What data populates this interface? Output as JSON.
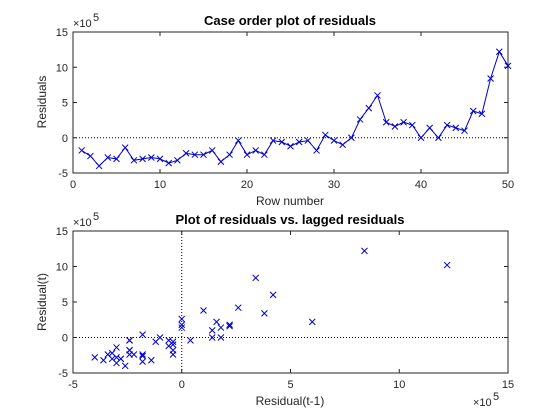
{
  "chart_data": [
    {
      "type": "line",
      "title": "Case order plot of residuals",
      "xlabel": "Row number",
      "ylabel": "Residuals",
      "xlim": [
        0,
        50
      ],
      "ylim": [
        -5,
        15
      ],
      "xticks": [
        "0",
        "10",
        "20",
        "30",
        "40",
        "50"
      ],
      "yticks": [
        "-5",
        "0",
        "5",
        "10",
        "15"
      ],
      "y_exponent": "×10^5",
      "marker": "x",
      "x": [
        1,
        2,
        3,
        4,
        5,
        6,
        7,
        8,
        9,
        10,
        11,
        12,
        13,
        14,
        15,
        16,
        17,
        18,
        19,
        20,
        21,
        22,
        23,
        24,
        25,
        26,
        27,
        28,
        29,
        30,
        31,
        32,
        33,
        34,
        35,
        36,
        37,
        38,
        39,
        40,
        41,
        42,
        43,
        44,
        45,
        46,
        47,
        48,
        49,
        50
      ],
      "y": [
        -1.8,
        -2.6,
        -4.0,
        -2.8,
        -3.0,
        -1.4,
        -3.2,
        -3.0,
        -2.8,
        -3.0,
        -3.6,
        -3.2,
        -2.2,
        -2.4,
        -2.4,
        -1.8,
        -3.4,
        -2.4,
        -0.4,
        -2.4,
        -1.8,
        -2.4,
        -0.4,
        -0.6,
        -1.2,
        -0.6,
        -0.4,
        -1.8,
        0.4,
        -0.4,
        -1.0,
        0.0,
        2.6,
        4.2,
        6.0,
        2.2,
        1.6,
        2.2,
        1.8,
        0.0,
        1.4,
        0.0,
        1.8,
        1.4,
        1.0,
        3.8,
        3.4,
        8.4,
        12.2,
        10.2
      ]
    },
    {
      "type": "scatter",
      "title": "Plot of residuals vs. lagged residuals",
      "xlabel": "Residual(t-1)",
      "ylabel": "Residual(t)",
      "xlim": [
        -5,
        15
      ],
      "ylim": [
        -5,
        15
      ],
      "xticks": [
        "-5",
        "0",
        "5",
        "10",
        "15"
      ],
      "yticks": [
        "-5",
        "0",
        "5",
        "10",
        "15"
      ],
      "x_exponent": "×10^5",
      "y_exponent": "×10^5",
      "marker": "x",
      "x": [
        -1.8,
        -2.6,
        -4.0,
        -2.8,
        -3.0,
        -1.4,
        -3.2,
        -3.0,
        -2.8,
        -3.0,
        -3.6,
        -3.2,
        -2.2,
        -2.4,
        -2.4,
        -1.8,
        -3.4,
        -2.4,
        -0.4,
        -2.4,
        -1.8,
        -2.4,
        -0.4,
        -0.6,
        -1.2,
        -0.6,
        -0.4,
        -1.8,
        0.4,
        -0.4,
        -1.0,
        0.0,
        2.6,
        4.2,
        6.0,
        2.2,
        1.6,
        2.2,
        1.8,
        0.0,
        1.4,
        0.0,
        1.8,
        1.4,
        1.0,
        3.8,
        3.4,
        8.4,
        12.2
      ],
      "y": [
        -2.6,
        -4.0,
        -2.8,
        -3.0,
        -1.4,
        -3.2,
        -3.0,
        -2.8,
        -3.0,
        -3.6,
        -3.2,
        -2.2,
        -2.4,
        -2.4,
        -1.8,
        -3.4,
        -2.4,
        -0.4,
        -2.4,
        -1.8,
        -2.4,
        -0.4,
        -0.6,
        -1.2,
        -0.6,
        -0.4,
        -1.8,
        0.4,
        -0.4,
        -1.0,
        0.0,
        2.6,
        4.2,
        6.0,
        2.2,
        1.6,
        2.2,
        1.8,
        0.0,
        1.4,
        0.0,
        1.8,
        1.4,
        1.0,
        3.8,
        3.4,
        8.4,
        12.2,
        10.2
      ]
    }
  ],
  "colors": {
    "series": "#0000cc",
    "axis": "#262626",
    "zero_line": "#000000"
  },
  "exponent_label": {
    "base": "×10",
    "power": "5"
  }
}
